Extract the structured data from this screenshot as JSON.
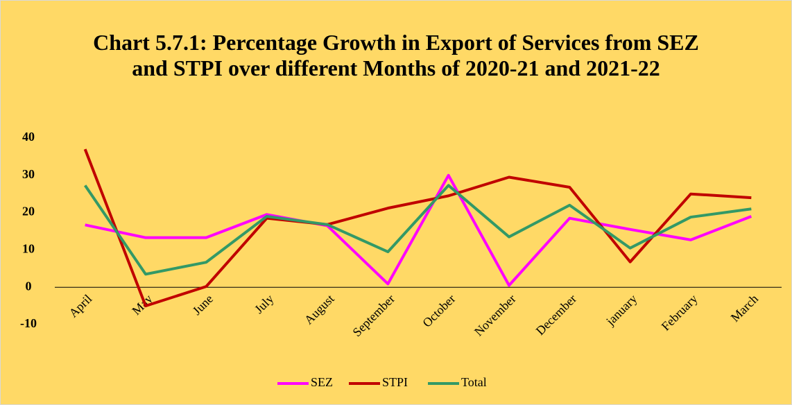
{
  "chart_data": {
    "type": "line",
    "title": "Chart 5.7.1: Percentage Growth in Export of Services from SEZ and STPI over different Months of 2020-21 and 2021-22",
    "categories": [
      "April",
      "May",
      "June",
      "July",
      "August",
      "September",
      "October",
      "November",
      "December",
      "january",
      "February",
      "March"
    ],
    "series": [
      {
        "name": "SEZ",
        "color": "#ff00ff",
        "values": [
          16.7,
          13.3,
          13.3,
          19.5,
          16.5,
          0.9,
          30,
          0.5,
          18.5,
          15.5,
          12.7,
          19
        ]
      },
      {
        "name": "STPI",
        "color": "#c00000",
        "values": [
          37,
          -5,
          0.2,
          18.5,
          16.8,
          21.2,
          24.5,
          29.5,
          26.8,
          6.8,
          25,
          24
        ]
      },
      {
        "name": "Total",
        "color": "#339966",
        "values": [
          27.3,
          3.5,
          6.7,
          19,
          16.8,
          9.5,
          27.3,
          13.5,
          22,
          10.5,
          18.8,
          21
        ]
      }
    ],
    "ylim": [
      -10,
      40
    ],
    "yticks": [
      -10,
      0,
      10,
      20,
      30,
      40
    ],
    "grid": false,
    "legend": "bottom"
  }
}
